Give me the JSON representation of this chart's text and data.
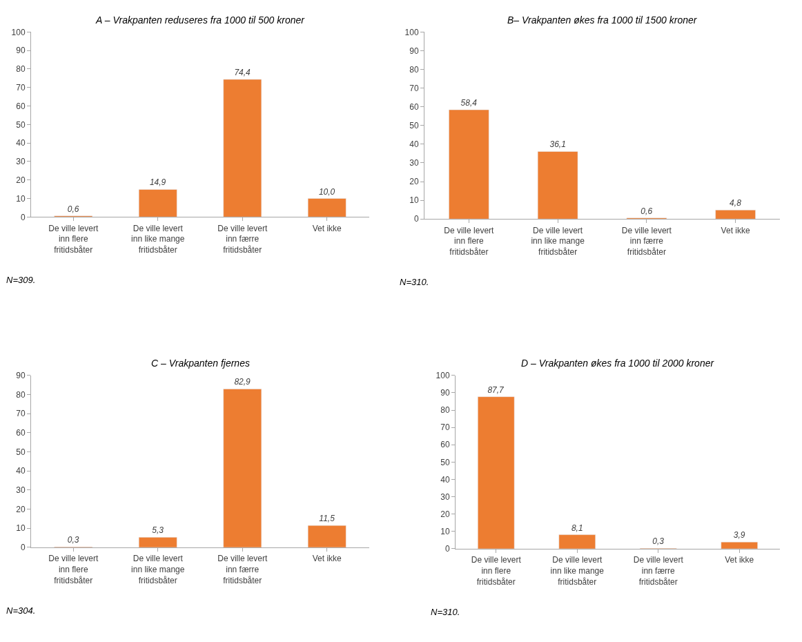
{
  "chart_data": [
    {
      "type": "bar",
      "title": "A – Vrakpanten reduseres fra 1000 til 500 kroner",
      "categories": [
        "De ville levert inn flere fritidsbåter",
        "De ville levert inn like mange fritidsbåter",
        "De ville levert inn færre fritidsbåter",
        "Vet ikke"
      ],
      "values": [
        0.6,
        14.9,
        74.4,
        10.0
      ],
      "value_labels": [
        "0,6",
        "14,9",
        "74,4",
        "10,0"
      ],
      "color": "#ed7d31",
      "ylim": [
        0,
        100
      ],
      "yticks": [
        0,
        10,
        20,
        30,
        40,
        50,
        60,
        70,
        80,
        90,
        100
      ],
      "annotations": [
        "N=309."
      ]
    },
    {
      "type": "bar",
      "title": "B– Vrakpanten økes fra 1000 til 1500 kroner",
      "categories": [
        "De ville levert inn flere fritidsbåter",
        "De ville levert inn like mange fritidsbåter",
        "De ville levert inn færre fritidsbåter",
        "Vet ikke"
      ],
      "values": [
        58.4,
        36.1,
        0.6,
        4.8
      ],
      "value_labels": [
        "58,4",
        "36,1",
        "0,6",
        "4,8"
      ],
      "color": "#ed7d31",
      "ylim": [
        0,
        100
      ],
      "yticks": [
        0,
        10,
        20,
        30,
        40,
        50,
        60,
        70,
        80,
        90,
        100
      ],
      "annotations": [
        "N=310."
      ]
    },
    {
      "type": "bar",
      "title": "C – Vrakpanten fjernes",
      "categories": [
        "De ville levert inn flere fritidsbåter",
        "De ville levert inn like mange fritidsbåter",
        "De ville levert inn færre fritidsbåter",
        "Vet ikke"
      ],
      "values": [
        0.3,
        5.3,
        82.9,
        11.5
      ],
      "value_labels": [
        "0,3",
        "5,3",
        "82,9",
        "11,5"
      ],
      "color": "#ed7d31",
      "ylim": [
        0,
        90
      ],
      "yticks": [
        0,
        10,
        20,
        30,
        40,
        50,
        60,
        70,
        80,
        90
      ],
      "annotations": [
        "N=304."
      ]
    },
    {
      "type": "bar",
      "title": "D – Vrakpanten økes fra 1000 til 2000 kroner",
      "categories": [
        "De ville levert inn flere fritidsbåter",
        "De ville levert inn like mange fritidsbåter",
        "De ville levert inn færre fritidsbåter",
        "Vet ikke"
      ],
      "values": [
        87.7,
        8.1,
        0.3,
        3.9
      ],
      "value_labels": [
        "87,7",
        "8,1",
        "0,3",
        "3,9"
      ],
      "color": "#ed7d31",
      "ylim": [
        0,
        100
      ],
      "yticks": [
        0,
        10,
        20,
        30,
        40,
        50,
        60,
        70,
        80,
        90,
        100
      ],
      "annotations": [
        "N=310."
      ]
    }
  ]
}
